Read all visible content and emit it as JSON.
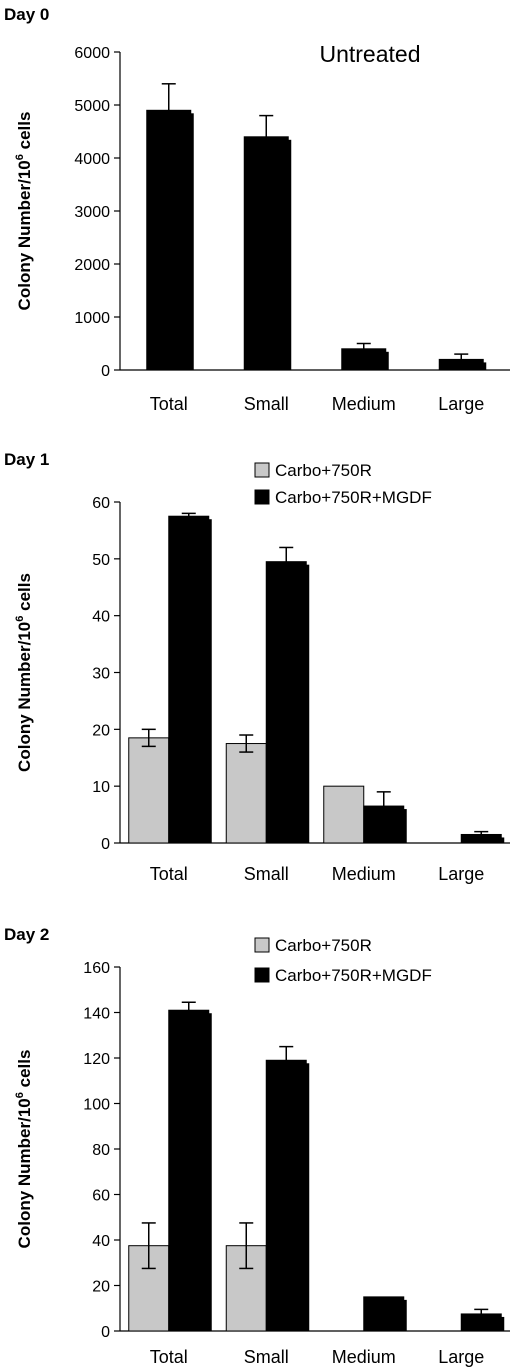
{
  "chart_data": [
    {
      "type": "bar",
      "title": "Day 0",
      "annotation": "Untreated",
      "ylabel": "Colony Number/10",
      "ylabel_sup": "6",
      "ylabel_tail": " cells",
      "categories": [
        "Total",
        "Small",
        "Medium",
        "Large"
      ],
      "ylim": [
        0,
        6000
      ],
      "yticks": [
        0,
        1000,
        2000,
        3000,
        4000,
        5000,
        6000
      ],
      "legend": false,
      "series": [
        {
          "values": [
            4900,
            4400,
            400,
            200
          ],
          "errors": [
            500,
            400,
            100,
            100
          ],
          "color": "#000000"
        }
      ]
    },
    {
      "type": "bar",
      "title": "Day 1",
      "ylabel": "Colony Number/10",
      "ylabel_sup": "6",
      "ylabel_tail": " cells",
      "categories": [
        "Total",
        "Small",
        "Medium",
        "Large"
      ],
      "ylim": [
        0,
        60
      ],
      "yticks": [
        0,
        10,
        20,
        30,
        40,
        50,
        60
      ],
      "legend": "top-right",
      "series": [
        {
          "name": "Carbo+750R",
          "values": [
            18.5,
            17.5,
            10,
            0
          ],
          "errors": [
            1.5,
            1.5,
            0,
            0
          ],
          "color": "#c8c8c8"
        },
        {
          "name": "Carbo+750R+MGDF",
          "values": [
            57.5,
            49.5,
            6.5,
            1.5
          ],
          "errors": [
            0.5,
            2.5,
            2.5,
            0.5
          ],
          "color": "#000000"
        }
      ]
    },
    {
      "type": "bar",
      "title": "Day 2",
      "ylabel": "Colony Number/10",
      "ylabel_sup": "6",
      "ylabel_tail": " cells",
      "categories": [
        "Total",
        "Small",
        "Medium",
        "Large"
      ],
      "ylim": [
        0,
        160
      ],
      "yticks": [
        0,
        20,
        40,
        60,
        80,
        100,
        120,
        140,
        160
      ],
      "legend": "top-right",
      "series": [
        {
          "name": "Carbo+750R",
          "values": [
            37.5,
            37.5,
            0,
            0
          ],
          "errors": [
            10,
            10,
            0,
            0
          ],
          "color": "#c8c8c8"
        },
        {
          "name": "Carbo+750R+MGDF",
          "values": [
            141,
            119,
            15,
            7.5
          ],
          "errors": [
            3.5,
            6,
            0,
            2
          ],
          "color": "#000000"
        }
      ]
    }
  ]
}
